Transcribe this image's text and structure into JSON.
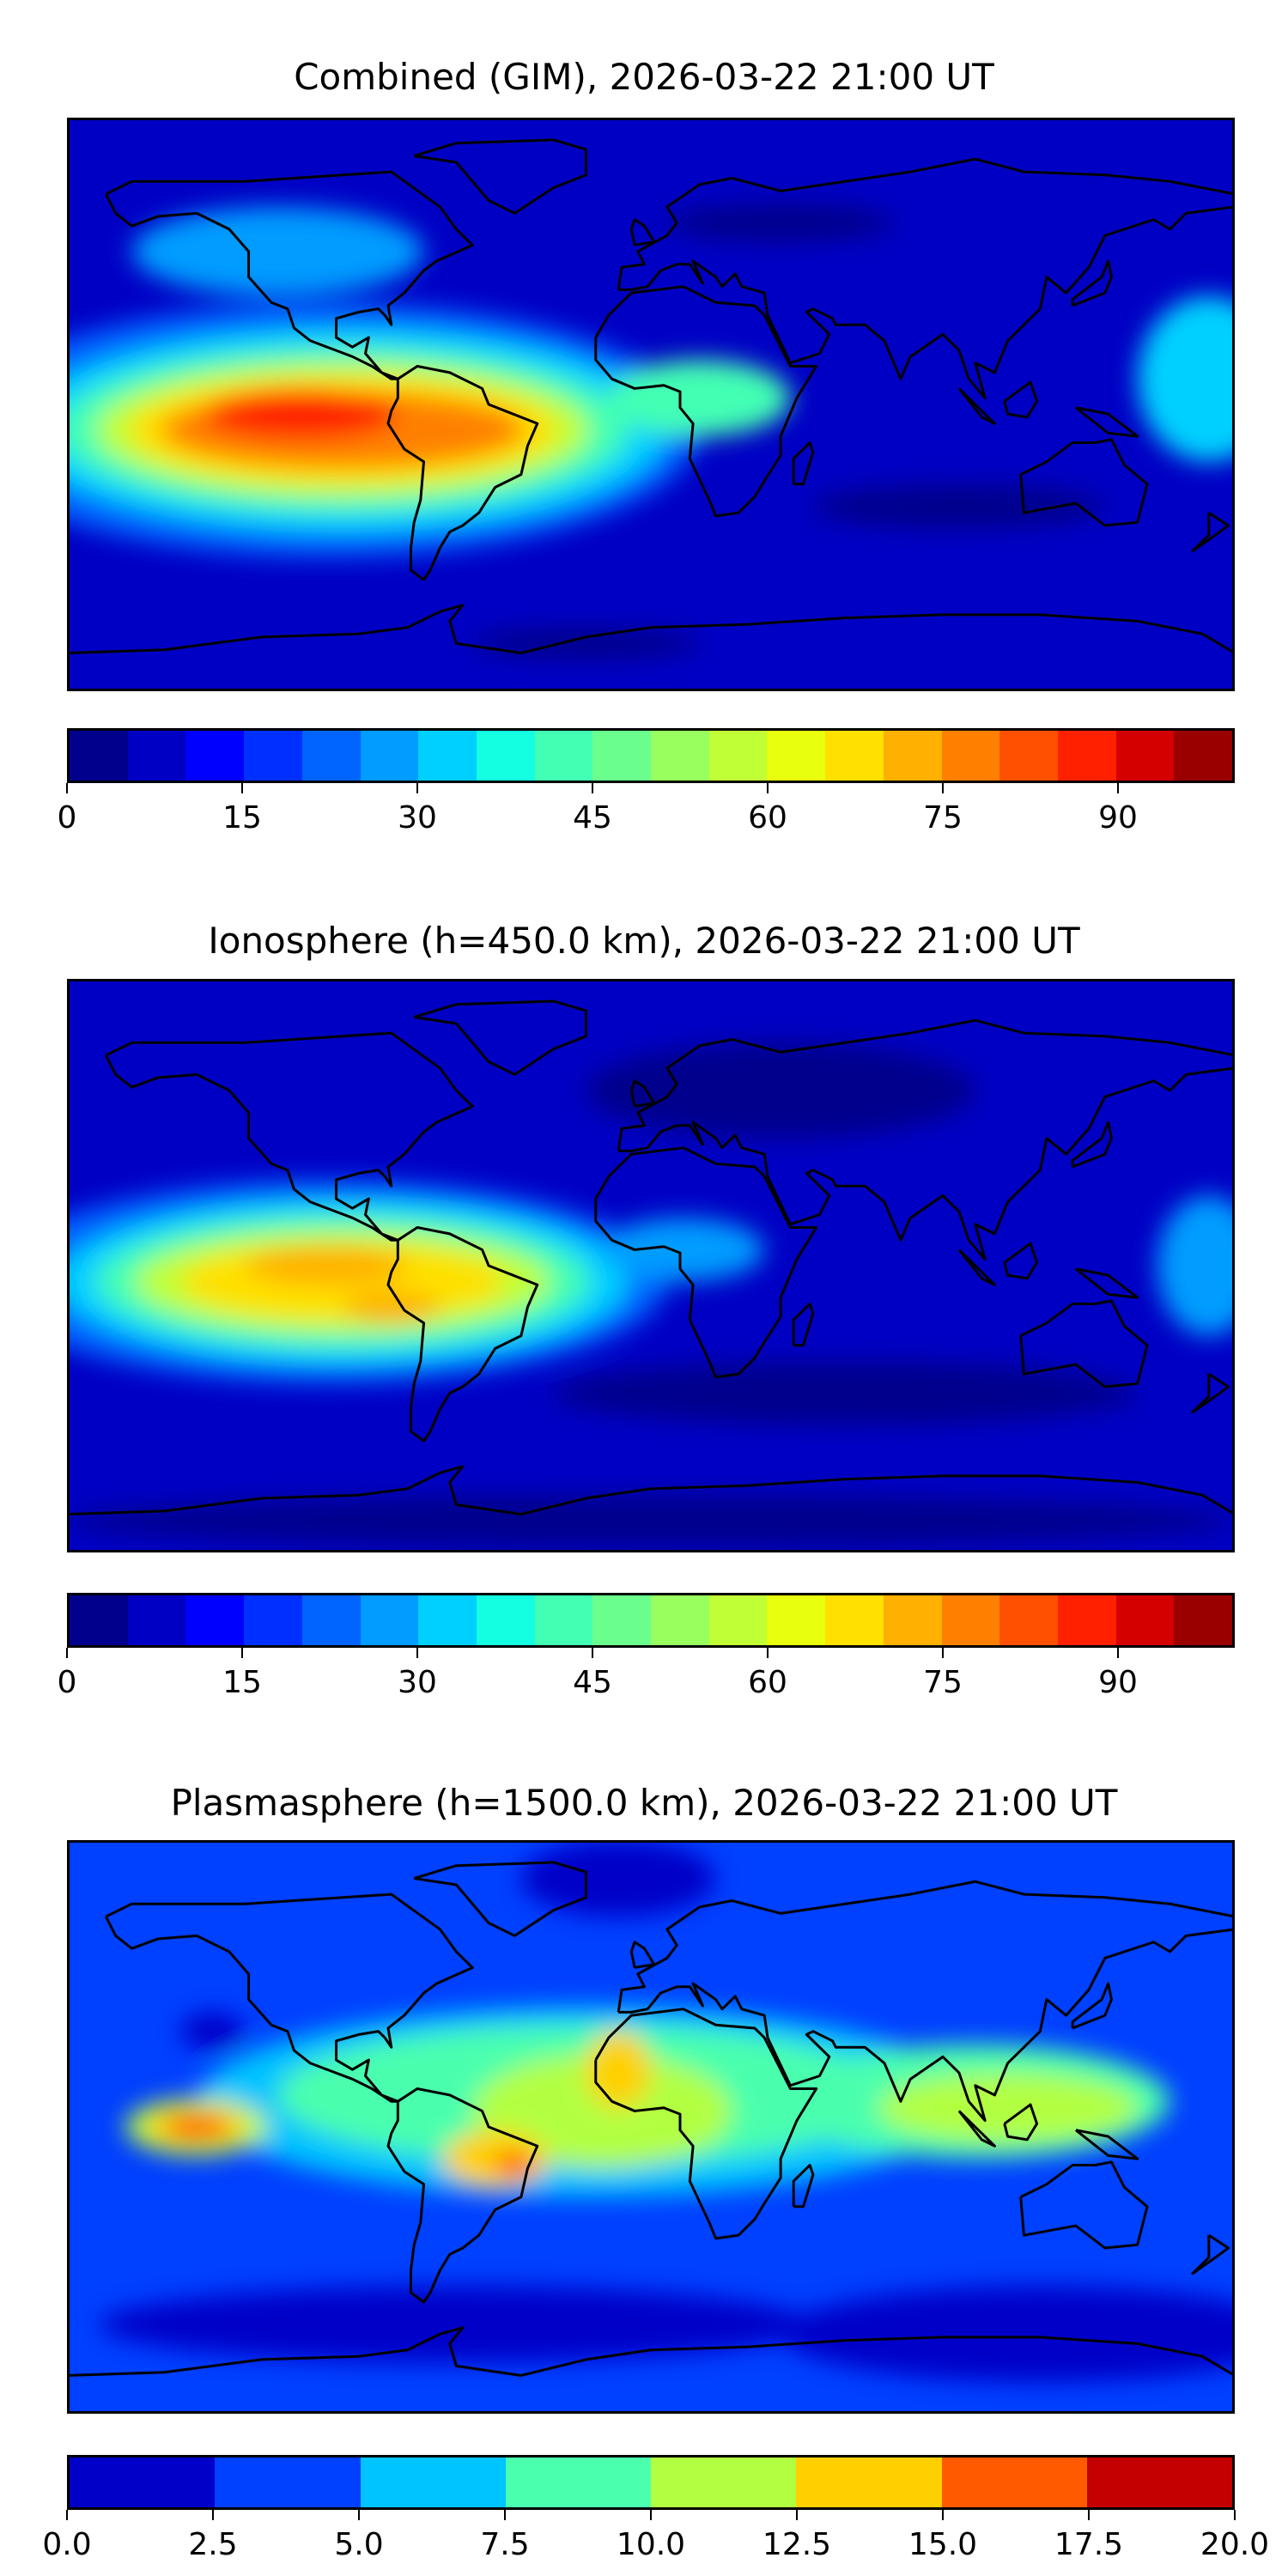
{
  "chart_data": [
    {
      "type": "heatmap",
      "title": "Combined (GIM), 2026-03-22 21:00 UT",
      "projection": "plate carree world map with coastlines",
      "colorbar": {
        "range": [
          0,
          100
        ],
        "levels": [
          0,
          5,
          10,
          15,
          20,
          25,
          30,
          35,
          40,
          45,
          50,
          55,
          60,
          65,
          70,
          75,
          80,
          85,
          90,
          95,
          100
        ],
        "tick_labels": [
          "0",
          "15",
          "30",
          "45",
          "60",
          "75",
          "90"
        ],
        "tick_values": [
          0,
          15,
          30,
          45,
          60,
          75,
          90
        ],
        "colors": [
          "#00008c",
          "#0000c4",
          "#0000ff",
          "#0030ff",
          "#0064ff",
          "#009cff",
          "#00d0ff",
          "#14ffe2",
          "#42ffb4",
          "#6aff8c",
          "#98ff5e",
          "#c0ff36",
          "#e8ff0e",
          "#ffe000",
          "#ffb000",
          "#ff8000",
          "#ff5000",
          "#ff2000",
          "#d40000",
          "#9a0000"
        ]
      },
      "base_color": "#0000c4",
      "features": [
        {
          "lon": -100,
          "lat": -8,
          "rlon": 115,
          "rlat": 40,
          "color": "#0064ff"
        },
        {
          "lon": -95,
          "lat": -8,
          "rlon": 100,
          "rlat": 32,
          "color": "#00d0ff"
        },
        {
          "lon": -95,
          "lat": -8,
          "rlon": 88,
          "rlat": 26,
          "color": "#42ffb4"
        },
        {
          "lon": -95,
          "lat": -8,
          "rlon": 76,
          "rlat": 21,
          "color": "#c0ff36"
        },
        {
          "lon": -95,
          "lat": -8,
          "rlon": 66,
          "rlat": 17,
          "color": "#ffe000"
        },
        {
          "lon": -95,
          "lat": -8,
          "rlon": 56,
          "rlat": 12,
          "color": "#ff8000"
        },
        {
          "lon": -108,
          "lat": -3,
          "rlon": 30,
          "rlat": 8,
          "color": "#ff2000"
        },
        {
          "lon": -115,
          "lat": 48,
          "rlon": 45,
          "rlat": 14,
          "color": "#009cff"
        },
        {
          "lon": 172,
          "lat": 8,
          "rlon": 22,
          "rlat": 26,
          "color": "#00d0ff"
        },
        {
          "lon": 15,
          "lat": 2,
          "rlon": 28,
          "rlat": 12,
          "color": "#42ffb4"
        },
        {
          "lon": 40,
          "lat": 57,
          "rlon": 35,
          "rlat": 6,
          "color": "#00008c"
        },
        {
          "lon": 95,
          "lat": -32,
          "rlon": 45,
          "rlat": 7,
          "color": "#00008c"
        },
        {
          "lon": -20,
          "lat": -75,
          "rlon": 35,
          "rlat": 5,
          "color": "#00008c"
        }
      ]
    },
    {
      "type": "heatmap",
      "title": "Ionosphere  (h=450.0 km), 2026-03-22 21:00 UT",
      "projection": "plate carree world map with coastlines",
      "colorbar": {
        "range": [
          0,
          100
        ],
        "levels": [
          0,
          5,
          10,
          15,
          20,
          25,
          30,
          35,
          40,
          45,
          50,
          55,
          60,
          65,
          70,
          75,
          80,
          85,
          90,
          95,
          100
        ],
        "tick_labels": [
          "0",
          "15",
          "30",
          "45",
          "60",
          "75",
          "90"
        ],
        "tick_values": [
          0,
          15,
          30,
          45,
          60,
          75,
          90
        ],
        "colors": [
          "#00008c",
          "#0000c4",
          "#0000ff",
          "#0030ff",
          "#0064ff",
          "#009cff",
          "#00d0ff",
          "#14ffe2",
          "#42ffb4",
          "#6aff8c",
          "#98ff5e",
          "#c0ff36",
          "#e8ff0e",
          "#ffe000",
          "#ffb000",
          "#ff8000",
          "#ff5000",
          "#ff2000",
          "#d40000",
          "#9a0000"
        ]
      },
      "base_color": "#0000c4",
      "features": [
        {
          "lon": -100,
          "lat": -5,
          "rlon": 105,
          "rlat": 32,
          "color": "#0064ff"
        },
        {
          "lon": -95,
          "lat": -5,
          "rlon": 88,
          "rlat": 26,
          "color": "#00d0ff"
        },
        {
          "lon": -95,
          "lat": -5,
          "rlon": 76,
          "rlat": 21,
          "color": "#42ffb4"
        },
        {
          "lon": -95,
          "lat": -5,
          "rlon": 64,
          "rlat": 16,
          "color": "#c0ff36"
        },
        {
          "lon": -95,
          "lat": -5,
          "rlon": 50,
          "rlat": 12,
          "color": "#ffe000"
        },
        {
          "lon": -100,
          "lat": 0,
          "rlon": 25,
          "rlat": 6,
          "color": "#ffb000"
        },
        {
          "lon": -80,
          "lat": -13,
          "rlon": 15,
          "rlat": 5,
          "color": "#ffb000"
        },
        {
          "lon": 172,
          "lat": 0,
          "rlon": 16,
          "rlat": 22,
          "color": "#009cff"
        },
        {
          "lon": 10,
          "lat": 5,
          "rlon": 25,
          "rlat": 10,
          "color": "#009cff"
        },
        {
          "lon": 40,
          "lat": 55,
          "rlon": 60,
          "rlat": 15,
          "color": "#00008c"
        },
        {
          "lon": 60,
          "lat": -40,
          "rlon": 90,
          "rlat": 10,
          "color": "#00008c"
        },
        {
          "lon": 0,
          "lat": -80,
          "rlon": 180,
          "rlat": 8,
          "color": "#00008c"
        }
      ]
    },
    {
      "type": "heatmap",
      "title": "Plasmasphere (h=1500.0 km), 2026-03-22 21:00 UT",
      "projection": "plate carree world map with coastlines",
      "colorbar": {
        "range": [
          0,
          20
        ],
        "levels": [
          0,
          2.5,
          5,
          7.5,
          10,
          12.5,
          15,
          17.5,
          20
        ],
        "tick_labels": [
          "0.0",
          "2.5",
          "5.0",
          "7.5",
          "10.0",
          "12.5",
          "15.0",
          "17.5",
          "20.0"
        ],
        "tick_values": [
          0,
          2.5,
          5,
          7.5,
          10,
          12.5,
          15,
          17.5,
          20
        ],
        "colors": [
          "#0000c8",
          "#0040ff",
          "#00c4ff",
          "#4affae",
          "#b2ff42",
          "#ffd000",
          "#ff5a00",
          "#c40000"
        ]
      },
      "base_color": "#0040ff",
      "features": [
        {
          "lon": -20,
          "lat": 8,
          "rlon": 120,
          "rlat": 30,
          "color": "#00c4ff"
        },
        {
          "lon": -20,
          "lat": 10,
          "rlon": 95,
          "rlat": 22,
          "color": "#4affae"
        },
        {
          "lon": 100,
          "lat": 8,
          "rlon": 60,
          "rlat": 18,
          "color": "#4affae"
        },
        {
          "lon": -15,
          "lat": 5,
          "rlon": 40,
          "rlat": 18,
          "color": "#b2ff42"
        },
        {
          "lon": 110,
          "lat": 6,
          "rlon": 40,
          "rlat": 11,
          "color": "#b2ff42"
        },
        {
          "lon": -140,
          "lat": 0,
          "rlon": 22,
          "rlat": 9,
          "color": "#b2ff42"
        },
        {
          "lon": -140,
          "lat": 0,
          "rlon": 16,
          "rlat": 6,
          "color": "#ffd000"
        },
        {
          "lon": -140,
          "lat": 0,
          "rlon": 10,
          "rlat": 4,
          "color": "#ff5a00"
        },
        {
          "lon": -48,
          "lat": -10,
          "rlon": 16,
          "rlat": 9,
          "color": "#ffd000"
        },
        {
          "lon": -42,
          "lat": -12,
          "rlon": 6,
          "rlat": 4,
          "color": "#ff5a00"
        },
        {
          "lon": -10,
          "lat": 18,
          "rlon": 10,
          "rlat": 12,
          "color": "#ffd000"
        },
        {
          "lon": -60,
          "lat": -62,
          "rlon": 110,
          "rlat": 12,
          "color": "#0000c8"
        },
        {
          "lon": -10,
          "lat": 78,
          "rlon": 30,
          "rlat": 12,
          "color": "#0000c8"
        },
        {
          "lon": 120,
          "lat": -65,
          "rlon": 80,
          "rlat": 15,
          "color": "#0000c8"
        },
        {
          "lon": -135,
          "lat": 30,
          "rlon": 10,
          "rlat": 6,
          "color": "#0000c8"
        }
      ]
    }
  ]
}
